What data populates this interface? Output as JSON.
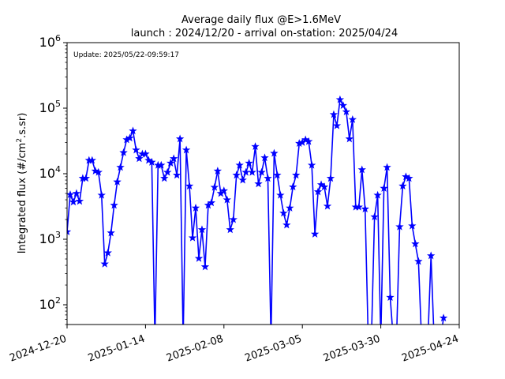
{
  "chart_data": {
    "type": "line",
    "title_line1": "Average daily flux @E>1.6MeV",
    "title_line2": "launch : 2024/12/20 - arrival on-station: 2025/04/24",
    "annotation": "Update: 2025/05/22-09:59:17",
    "ylabel_prefix": "Integrated flux (#/cm",
    "ylabel_sup": "2",
    "ylabel_suffix": ".s.sr)",
    "xlabel": "",
    "yscale": "log",
    "xlim": [
      "2024-12-20",
      "2025-04-24"
    ],
    "ylim": [
      50,
      1000000
    ],
    "x_ticks": [
      "2024-12-20",
      "2025-01-14",
      "2025-02-08",
      "2025-03-05",
      "2025-03-30",
      "2025-04-24"
    ],
    "y_ticks": [
      {
        "value": 100,
        "base": "10",
        "exp": "2"
      },
      {
        "value": 1000,
        "base": "10",
        "exp": "3"
      },
      {
        "value": 10000,
        "base": "10",
        "exp": "4"
      },
      {
        "value": 100000,
        "base": "10",
        "exp": "5"
      },
      {
        "value": 1000000,
        "base": "10",
        "exp": "6"
      }
    ],
    "grid": false,
    "legend": "none",
    "series": [
      {
        "color": "#0000ff",
        "marker": "star",
        "points": [
          [
            "2024-12-20",
            1300
          ],
          [
            "2024-12-21",
            4800
          ],
          [
            "2024-12-22",
            3700
          ],
          [
            "2024-12-23",
            5000
          ],
          [
            "2024-12-24",
            3800
          ],
          [
            "2024-12-25",
            8500
          ],
          [
            "2024-12-26",
            8500
          ],
          [
            "2024-12-27",
            16000
          ],
          [
            "2024-12-28",
            16000
          ],
          [
            "2024-12-29",
            11000
          ],
          [
            "2024-12-30",
            10500
          ],
          [
            "2024-12-31",
            4700
          ],
          [
            "2025-01-01",
            420
          ],
          [
            "2025-01-02",
            620
          ],
          [
            "2025-01-03",
            1250
          ],
          [
            "2025-01-04",
            3300
          ],
          [
            "2025-01-05",
            7500
          ],
          [
            "2025-01-06",
            12500
          ],
          [
            "2025-01-07",
            21000
          ],
          [
            "2025-01-08",
            33000
          ],
          [
            "2025-01-09",
            35000
          ],
          [
            "2025-01-10",
            45000
          ],
          [
            "2025-01-11",
            23000
          ],
          [
            "2025-01-12",
            17000
          ],
          [
            "2025-01-13",
            20000
          ],
          [
            "2025-01-14",
            20000
          ],
          [
            "2025-01-15",
            16000
          ],
          [
            "2025-01-16",
            15000
          ],
          [
            "2025-01-17",
            null
          ],
          [
            "2025-01-18",
            13500
          ],
          [
            "2025-01-19",
            13500
          ],
          [
            "2025-01-20",
            8500
          ],
          [
            "2025-01-21",
            10500
          ],
          [
            "2025-01-22",
            14500
          ],
          [
            "2025-01-23",
            17000
          ],
          [
            "2025-01-24",
            9500
          ],
          [
            "2025-01-25",
            34000
          ],
          [
            "2025-01-26",
            null
          ],
          [
            "2025-01-27",
            23000
          ],
          [
            "2025-01-28",
            6500
          ],
          [
            "2025-01-29",
            1050
          ],
          [
            "2025-01-30",
            3000
          ],
          [
            "2025-01-31",
            510
          ],
          [
            "2025-02-01",
            1400
          ],
          [
            "2025-02-02",
            380
          ],
          [
            "2025-02-03",
            3300
          ],
          [
            "2025-02-04",
            3600
          ],
          [
            "2025-02-05",
            6200
          ],
          [
            "2025-02-06",
            11000
          ],
          [
            "2025-02-07",
            5000
          ],
          [
            "2025-02-08",
            5500
          ],
          [
            "2025-02-09",
            4000
          ],
          [
            "2025-02-10",
            1400
          ],
          [
            "2025-02-11",
            2000
          ],
          [
            "2025-02-12",
            9500
          ],
          [
            "2025-02-13",
            13500
          ],
          [
            "2025-02-14",
            8000
          ],
          [
            "2025-02-15",
            10500
          ],
          [
            "2025-02-16",
            14500
          ],
          [
            "2025-02-17",
            10500
          ],
          [
            "2025-02-18",
            26000
          ],
          [
            "2025-02-19",
            7000
          ],
          [
            "2025-02-20",
            10500
          ],
          [
            "2025-02-21",
            17500
          ],
          [
            "2025-02-22",
            8500
          ],
          [
            "2025-02-23",
            null
          ],
          [
            "2025-02-24",
            20500
          ],
          [
            "2025-02-25",
            9500
          ],
          [
            "2025-02-26",
            4700
          ],
          [
            "2025-02-27",
            2500
          ],
          [
            "2025-02-28",
            1650
          ],
          [
            "2025-03-01",
            3000
          ],
          [
            "2025-03-02",
            6300
          ],
          [
            "2025-03-03",
            9500
          ],
          [
            "2025-03-04",
            29000
          ],
          [
            "2025-03-05",
            30000
          ],
          [
            "2025-03-06",
            33000
          ],
          [
            "2025-03-07",
            31000
          ],
          [
            "2025-03-08",
            13500
          ],
          [
            "2025-03-09",
            1200
          ],
          [
            "2025-03-10",
            5300
          ],
          [
            "2025-03-11",
            6800
          ],
          [
            "2025-03-12",
            6300
          ],
          [
            "2025-03-13",
            3200
          ],
          [
            "2025-03-14",
            8500
          ],
          [
            "2025-03-15",
            80000
          ],
          [
            "2025-03-16",
            54000
          ],
          [
            "2025-03-17",
            135000
          ],
          [
            "2025-03-18",
            110000
          ],
          [
            "2025-03-19",
            88000
          ],
          [
            "2025-03-20",
            34000
          ],
          [
            "2025-03-21",
            67000
          ],
          [
            "2025-03-22",
            3100
          ],
          [
            "2025-03-23",
            3100
          ],
          [
            "2025-03-24",
            11500
          ],
          [
            "2025-03-25",
            2900
          ],
          [
            "2025-03-26",
            null
          ],
          [
            "2025-03-27",
            null
          ],
          [
            "2025-03-28",
            2200
          ],
          [
            "2025-03-29",
            4700
          ],
          [
            "2025-03-30",
            null
          ],
          [
            "2025-03-31",
            6000
          ],
          [
            "2025-04-01",
            12500
          ],
          [
            "2025-04-02",
            130
          ],
          [
            "2025-04-03",
            null
          ],
          [
            "2025-04-04",
            null
          ],
          [
            "2025-04-05",
            1550
          ],
          [
            "2025-04-06",
            6500
          ],
          [
            "2025-04-07",
            9000
          ],
          [
            "2025-04-08",
            8500
          ],
          [
            "2025-04-09",
            1600
          ],
          [
            "2025-04-10",
            850
          ],
          [
            "2025-04-11",
            460
          ],
          [
            "2025-04-12",
            null
          ],
          [
            "2025-04-13",
            null
          ],
          [
            "2025-04-14",
            null
          ],
          [
            "2025-04-15",
            560
          ],
          [
            "2025-04-16",
            null
          ],
          [
            "2025-04-17",
            null
          ],
          [
            "2025-04-18",
            null
          ],
          [
            "2025-04-19",
            63
          ]
        ]
      }
    ]
  }
}
